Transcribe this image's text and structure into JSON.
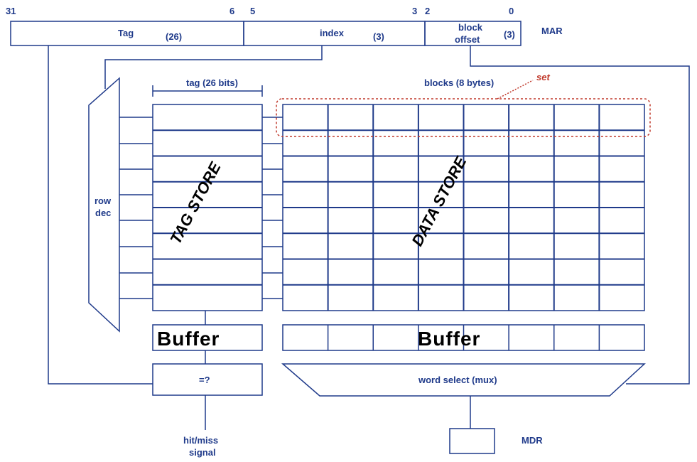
{
  "bit_positions": {
    "b31": "31",
    "b6": "6",
    "b5": "5",
    "b3": "3",
    "b2": "2",
    "b0": "0"
  },
  "mar": {
    "label": "MAR",
    "tag_field": {
      "name": "Tag",
      "width": "(26)"
    },
    "index_field": {
      "name": "index",
      "width": "(3)"
    },
    "offset_field": {
      "name_line1": "block",
      "name_line2": "offset",
      "width": "(3)"
    }
  },
  "decoder": {
    "line1": "row",
    "line2": "dec"
  },
  "tag_store": {
    "header": "tag (26 bits)",
    "title": "TAG STORE",
    "rows": 8
  },
  "data_store": {
    "header": "blocks (8 bytes)",
    "title": "DATA STORE",
    "rows": 8,
    "cols": 8
  },
  "set_annotation": "set",
  "tag_buffer": "Buffer",
  "data_buffer": "Buffer",
  "comparator": "=?",
  "mux": "word select (mux)",
  "hit_miss": {
    "line1": "hit/miss",
    "line2": "signal"
  },
  "mdr": "MDR",
  "colors": {
    "lines": "#1f3a8a",
    "annotation": "#c0392b",
    "background": "#ffffff"
  }
}
